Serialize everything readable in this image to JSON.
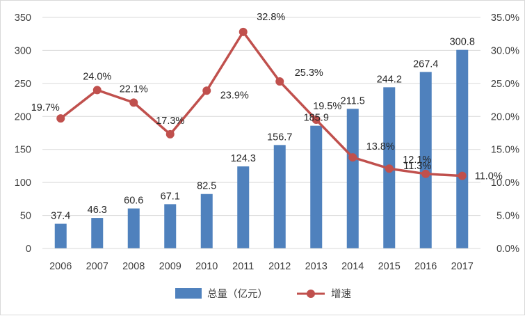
{
  "chart_data": {
    "type": "bar",
    "categories": [
      "2006",
      "2007",
      "2008",
      "2009",
      "2010",
      "2011",
      "2012",
      "2013",
      "2014",
      "2015",
      "2016",
      "2017"
    ],
    "series": [
      {
        "name": "总量（亿元）",
        "type": "bar",
        "axis": "left",
        "color": "#4f81bd",
        "values": [
          37.4,
          46.3,
          60.6,
          67.1,
          82.5,
          124.3,
          156.7,
          185.9,
          211.5,
          244.2,
          267.4,
          300.8
        ],
        "labels": [
          "37.4",
          "46.3",
          "60.6",
          "67.1",
          "82.5",
          "124.3",
          "156.7",
          "185.9",
          "211.5",
          "244.2",
          "267.4",
          "300.8"
        ]
      },
      {
        "name": "增速",
        "type": "line",
        "axis": "right",
        "color": "#c0504d",
        "values": [
          19.7,
          24.0,
          22.1,
          17.3,
          23.9,
          32.8,
          25.3,
          19.5,
          13.8,
          12.1,
          11.3,
          11.0
        ],
        "labels": [
          "19.7%",
          "24.0%",
          "22.1%",
          "17.3%",
          "23.9%",
          "32.8%",
          "25.3%",
          "19.5%",
          "13.8%",
          "12.1%",
          "11.3%",
          "11.0%"
        ]
      }
    ],
    "ylim": [
      0,
      350
    ],
    "yticks": [
      "0",
      "50",
      "100",
      "150",
      "200",
      "250",
      "300",
      "350"
    ],
    "y2lim": [
      0,
      35
    ],
    "y2ticks": [
      "0.0%",
      "5.0%",
      "10.0%",
      "15.0%",
      "20.0%",
      "25.0%",
      "30.0%",
      "35.0%"
    ],
    "grid": true,
    "legend_position": "bottom"
  }
}
